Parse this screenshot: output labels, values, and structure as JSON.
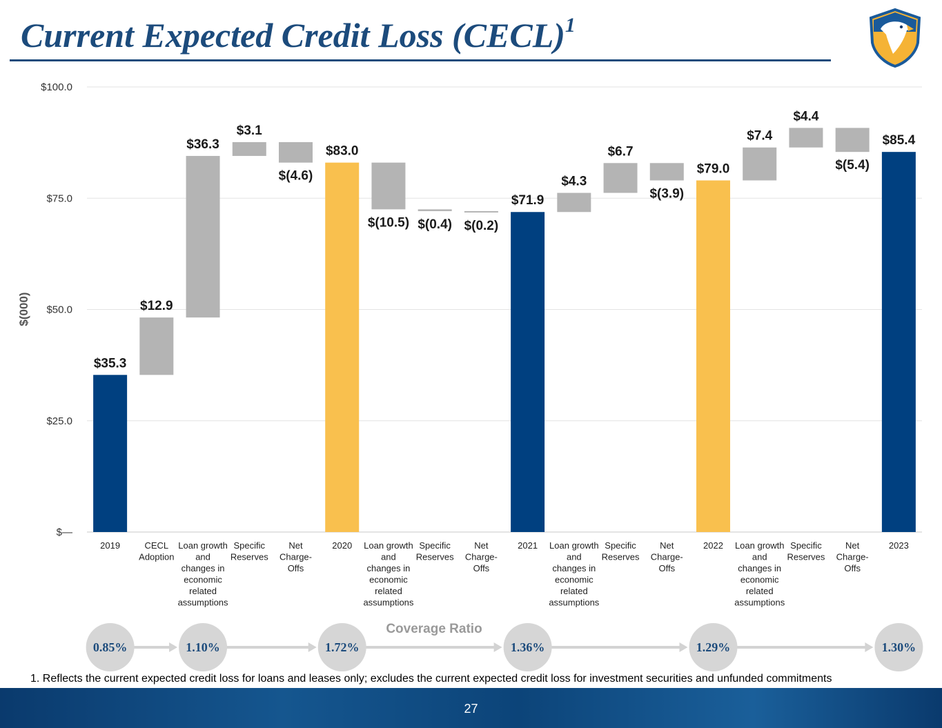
{
  "title": "Current Expected Credit Loss (CECL)",
  "title_sup": "1",
  "colors": {
    "navy": "#004080",
    "gold": "#f9c04e",
    "gray": "#b4b4b4",
    "title": "#1c4b7c"
  },
  "chart_data": {
    "type": "waterfall",
    "ylabel": "$(000)",
    "ylim": [
      0,
      100
    ],
    "yticks": [
      0,
      25,
      50,
      75,
      100
    ],
    "ytick_labels": [
      "$—",
      "$25.0",
      "$50.0",
      "$75.0",
      "$100.0"
    ],
    "bars": [
      {
        "category": "2019",
        "kind": "total",
        "start": 0,
        "end": 35.3,
        "label": "$35.3",
        "color": "navy"
      },
      {
        "category": "CECL Adoption",
        "kind": "change",
        "start": 35.3,
        "end": 48.2,
        "label": "$12.9",
        "color": "gray"
      },
      {
        "category": "Loan growth and changes in economic related assumptions",
        "kind": "change",
        "start": 48.2,
        "end": 84.5,
        "label": "$36.3",
        "color": "gray"
      },
      {
        "category": "Specific Reserves",
        "kind": "change",
        "start": 84.5,
        "end": 87.6,
        "label": "$3.1",
        "color": "gray"
      },
      {
        "category": "Net Charge-Offs",
        "kind": "change",
        "start": 87.6,
        "end": 83.0,
        "label": "$(4.6)",
        "color": "gray"
      },
      {
        "category": "2020",
        "kind": "total",
        "start": 0,
        "end": 83.0,
        "label": "$83.0",
        "color": "gold"
      },
      {
        "category": "Loan growth and changes in economic related assumptions",
        "kind": "change",
        "start": 83.0,
        "end": 72.5,
        "label": "$(10.5)",
        "color": "gray"
      },
      {
        "category": "Specific Reserves",
        "kind": "change",
        "start": 72.5,
        "end": 72.1,
        "label": "$(0.4)",
        "color": "gray"
      },
      {
        "category": "Net Charge-Offs",
        "kind": "change",
        "start": 72.1,
        "end": 71.9,
        "label": "$(0.2)",
        "color": "gray"
      },
      {
        "category": "2021",
        "kind": "total",
        "start": 0,
        "end": 71.9,
        "label": "$71.9",
        "color": "navy"
      },
      {
        "category": "Loan growth and changes in economic related assumptions",
        "kind": "change",
        "start": 71.9,
        "end": 76.2,
        "label": "$4.3",
        "color": "gray"
      },
      {
        "category": "Specific Reserves",
        "kind": "change",
        "start": 76.2,
        "end": 82.9,
        "label": "$6.7",
        "color": "gray"
      },
      {
        "category": "Net Charge-Offs",
        "kind": "change",
        "start": 82.9,
        "end": 79.0,
        "label": "$(3.9)",
        "color": "gray"
      },
      {
        "category": "2022",
        "kind": "total",
        "start": 0,
        "end": 79.0,
        "label": "$79.0",
        "color": "gold"
      },
      {
        "category": "Loan growth and changes in economic related assumptions",
        "kind": "change",
        "start": 79.0,
        "end": 86.4,
        "label": "$7.4",
        "color": "gray"
      },
      {
        "category": "Specific Reserves",
        "kind": "change",
        "start": 86.4,
        "end": 90.8,
        "label": "$4.4",
        "color": "gray"
      },
      {
        "category": "Net Charge-Offs",
        "kind": "change",
        "start": 90.8,
        "end": 85.4,
        "label": "$(5.4)",
        "color": "gray"
      },
      {
        "category": "2023",
        "kind": "total",
        "start": 0,
        "end": 85.4,
        "label": "$85.4",
        "color": "navy"
      }
    ]
  },
  "coverage": {
    "title": "Coverage Ratio",
    "ratios": [
      {
        "label": "0.85%",
        "bar_index": 0
      },
      {
        "label": "1.10%",
        "bar_index": 2
      },
      {
        "label": "1.72%",
        "bar_index": 5
      },
      {
        "label": "1.36%",
        "bar_index": 9
      },
      {
        "label": "1.29%",
        "bar_index": 13
      },
      {
        "label": "1.30%",
        "bar_index": 17
      }
    ]
  },
  "footnote": "1. Reflects the current expected credit loss for loans and leases only; excludes the current expected credit loss for investment securities and unfunded commitments",
  "page_number": "27"
}
